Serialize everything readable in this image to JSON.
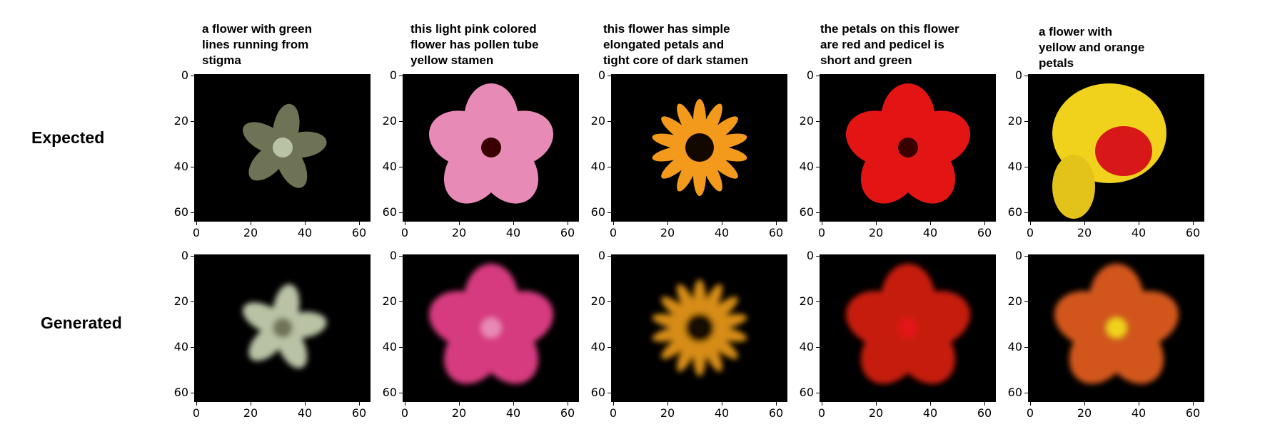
{
  "row_labels": [
    "Expected",
    "Generated"
  ],
  "captions": [
    "a flower with green\nlines running from\nstigma",
    "this light pink colored\nflower has pollen tube\nyellow stamen",
    "this flower has simple\nelongated petals and\ntight core of dark stamen",
    "the petals on this flower\nare red and pedicel is\nshort and green",
    "a flower with\nyellow and orange\npetals"
  ],
  "y_ticks": [
    "0",
    "20",
    "40",
    "60"
  ],
  "x_ticks": [
    "0",
    "20",
    "40",
    "60"
  ],
  "axis_range": [
    0,
    64
  ],
  "flowers": [
    {
      "expected": "pale-green-star-flower",
      "generated": "pale-green-blurry-flower",
      "colors": [
        "#6f7355",
        "#b9c2a4"
      ]
    },
    {
      "expected": "pink-hibiscus",
      "generated": "magenta-blurry-flower",
      "colors": [
        "#e78ab6",
        "#d73a7f"
      ]
    },
    {
      "expected": "orange-daisy-with-dark-center",
      "generated": "orange-yellow-blurry-flower",
      "colors": [
        "#f39a1c",
        "#d68c12"
      ]
    },
    {
      "expected": "red-flower",
      "generated": "dark-red-blurry-flower",
      "colors": [
        "#e31414",
        "#c61d10"
      ]
    },
    {
      "expected": "yellow-red-gladiolus",
      "generated": "orange-red-blurry-flower",
      "colors": [
        "#f0d21c",
        "#d2561a"
      ]
    }
  ]
}
